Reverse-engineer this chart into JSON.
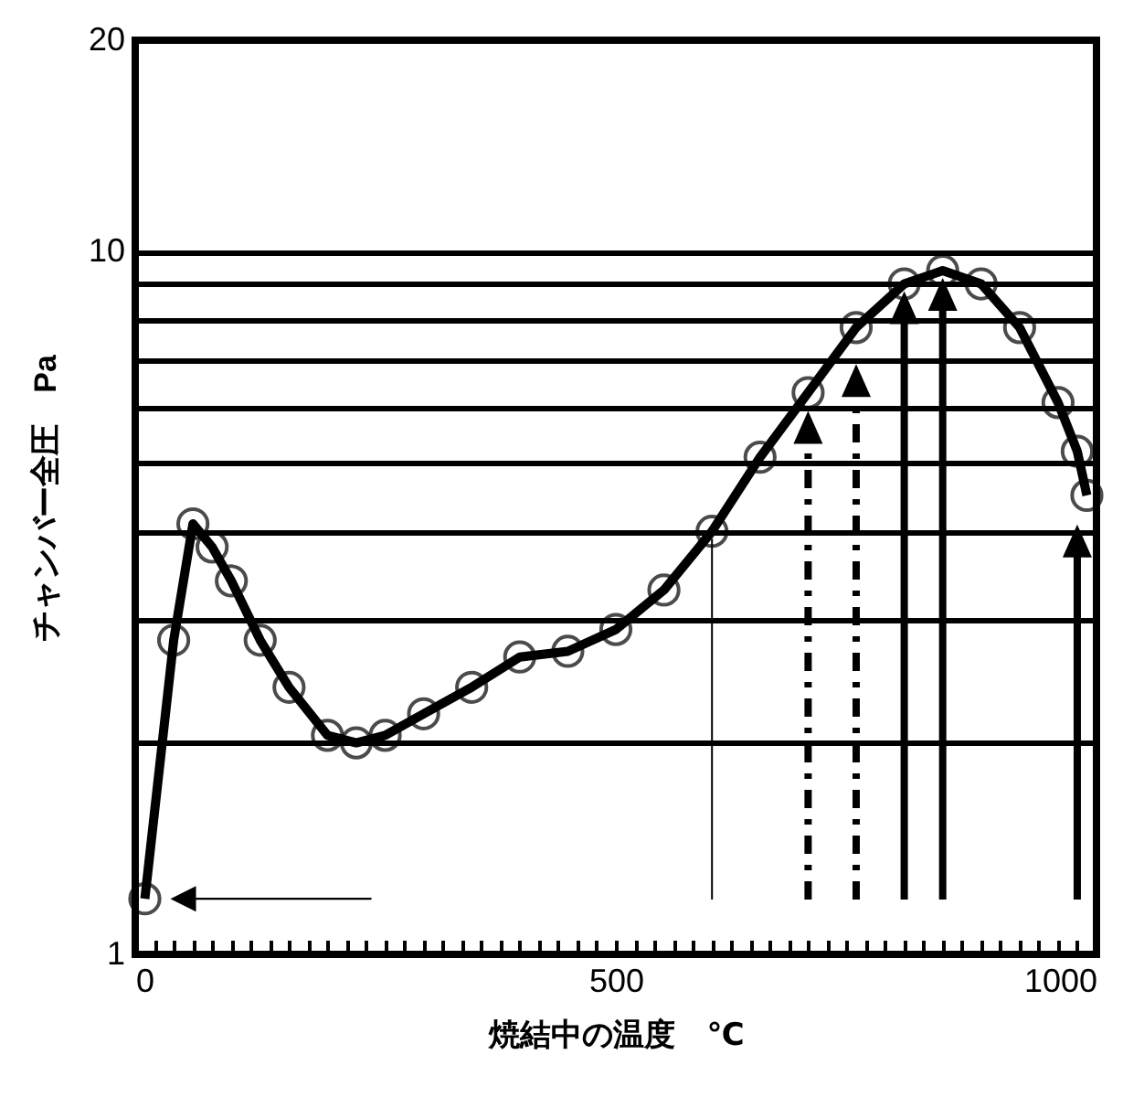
{
  "chart_data": {
    "type": "line",
    "xlabel": "焼結中の温度　℃",
    "ylabel": "チャンバー全圧　Pa",
    "x": [
      10,
      40,
      60,
      80,
      100,
      130,
      160,
      200,
      230,
      260,
      300,
      350,
      400,
      450,
      500,
      550,
      600,
      650,
      700,
      750,
      800,
      840,
      880,
      920,
      960,
      980,
      990
    ],
    "series": [
      {
        "color": "#000000",
        "values": [
          1.2,
          2.8,
          4.1,
          3.8,
          3.4,
          2.8,
          2.4,
          2.05,
          2.0,
          2.05,
          2.2,
          2.4,
          2.65,
          2.7,
          2.9,
          3.3,
          4.0,
          5.1,
          6.3,
          7.8,
          9.0,
          9.4,
          9.0,
          7.8,
          6.1,
          5.2,
          4.5
        ]
      }
    ],
    "xlim": [
      0,
      1000
    ],
    "xticks": [
      0,
      {
        "value": 20,
        "label": null
      },
      {
        "value": 40,
        "label": null
      },
      {
        "value": 60,
        "label": null
      },
      {
        "value": 80,
        "label": null
      },
      {
        "value": 100,
        "label": null
      },
      {
        "value": 120,
        "label": null
      },
      {
        "value": 140,
        "label": null
      },
      {
        "value": 160,
        "label": null
      },
      {
        "value": 180,
        "label": null
      },
      {
        "value": 200,
        "label": null
      },
      {
        "value": 220,
        "label": null
      },
      {
        "value": 240,
        "label": null
      },
      {
        "value": 260,
        "label": null
      },
      {
        "value": 280,
        "label": null
      },
      {
        "value": 300,
        "label": null
      },
      {
        "value": 320,
        "label": null
      },
      {
        "value": 340,
        "label": null
      },
      {
        "value": 360,
        "label": null
      },
      {
        "value": 380,
        "label": null
      },
      {
        "value": 400,
        "label": null
      },
      {
        "value": 420,
        "label": null
      },
      {
        "value": 440,
        "label": null
      },
      {
        "value": 460,
        "label": null
      },
      {
        "value": 480,
        "label": null
      },
      500,
      {
        "value": 520,
        "label": null
      },
      {
        "value": 540,
        "label": null
      },
      {
        "value": 560,
        "label": null
      },
      {
        "value": 580,
        "label": null
      },
      {
        "value": 600,
        "label": null
      },
      {
        "value": 620,
        "label": null
      },
      {
        "value": 640,
        "label": null
      },
      {
        "value": 660,
        "label": null
      },
      {
        "value": 680,
        "label": null
      },
      {
        "value": 700,
        "label": null
      },
      {
        "value": 720,
        "label": null
      },
      {
        "value": 740,
        "label": null
      },
      {
        "value": 760,
        "label": null
      },
      {
        "value": 780,
        "label": null
      },
      {
        "value": 800,
        "label": null
      },
      {
        "value": 820,
        "label": null
      },
      {
        "value": 840,
        "label": null
      },
      {
        "value": 860,
        "label": null
      },
      {
        "value": 880,
        "label": null
      },
      {
        "value": 900,
        "label": null
      },
      {
        "value": 920,
        "label": null
      },
      {
        "value": 940,
        "label": null
      },
      {
        "value": 960,
        "label": null
      },
      {
        "value": 980,
        "label": null
      },
      1000
    ],
    "ylim": [
      1,
      20
    ],
    "yticks": [
      1,
      {
        "value": 2,
        "label": null
      },
      {
        "value": 3,
        "label": null
      },
      {
        "value": 4,
        "label": null
      },
      {
        "value": 5,
        "label": null
      },
      {
        "value": 6,
        "label": null
      },
      {
        "value": 7,
        "label": null
      },
      {
        "value": 8,
        "label": null
      },
      {
        "value": 9,
        "label": null
      },
      10,
      20
    ],
    "log": "y",
    "grid": "y",
    "marker": "circle",
    "line_style": "solid",
    "legend": false
  }
}
